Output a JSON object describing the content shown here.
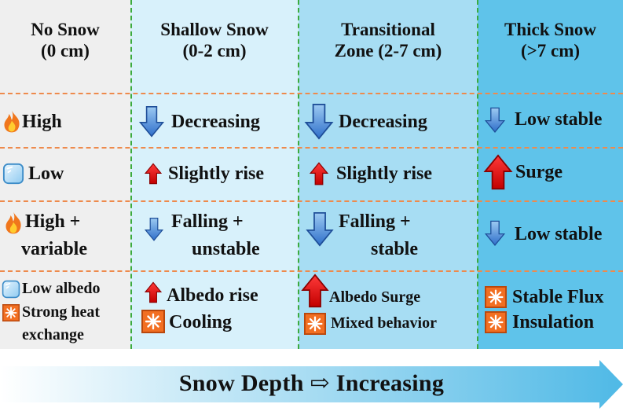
{
  "headers": [
    {
      "line1": "No Snow",
      "line2": "(0 cm)"
    },
    {
      "line1": "Shallow Snow",
      "line2": "(0-2 cm)"
    },
    {
      "line1": "Transitional",
      "line2": "Zone (2-7 cm)"
    },
    {
      "line1": "Thick Snow",
      "line2": "(>7 cm)"
    }
  ],
  "rows": [
    {
      "no_snow": "High",
      "shallow": "Decreasing",
      "transitional": "Decreasing",
      "thick": "Low stable"
    },
    {
      "no_snow": "Low",
      "shallow": "Slightly rise",
      "transitional": "Slightly rise",
      "thick": "Surge"
    },
    {
      "no_snow_line1": "High +",
      "no_snow_line2": "variable",
      "shallow_line1": "Falling +",
      "shallow_line2": "unstable",
      "transitional_line1": "Falling +",
      "transitional_line2": "stable",
      "thick": "Low stable"
    },
    {
      "no_snow_line1": "Low albedo",
      "no_snow_line2": "Strong heat",
      "no_snow_line3": "exchange",
      "shallow_line1": "Albedo rise",
      "shallow_line2": "Cooling",
      "transitional_line1": "Albedo Surge",
      "transitional_line2": "Mixed behavior",
      "thick_line1": "Stable Flux",
      "thick_line2": "Insulation"
    }
  ],
  "footer": {
    "text": "Snow Depth ⇨ Increasing"
  },
  "icons": {
    "fire": "fire-icon",
    "ice": "ice-cube-icon",
    "sun": "sun-burst-icon",
    "arrow_down": "blue-down-arrow-icon",
    "arrow_up": "red-up-arrow-icon"
  },
  "colors": {
    "no_snow_bg": "#efefef",
    "shallow_bg": "#d8f1fb",
    "transitional_bg": "#a7ddf3",
    "thick_bg": "#5fc3ea",
    "column_divider": "#3cab3e",
    "row_divider": "#ee8a4c",
    "down_arrow": "#3a7fd0",
    "up_arrow": "#e01010",
    "sun_box": "#f26f22"
  }
}
